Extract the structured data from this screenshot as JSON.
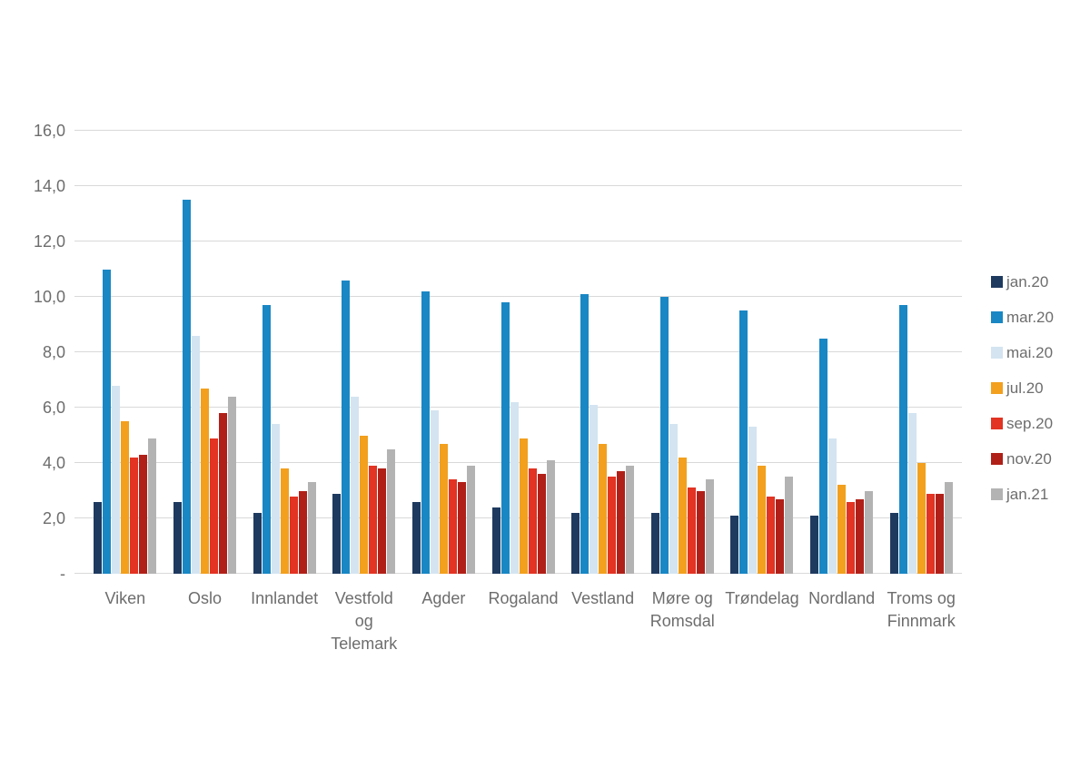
{
  "chart_data": {
    "type": "bar",
    "title": "",
    "xlabel": "",
    "ylabel": "",
    "categories": [
      "Viken",
      "Oslo",
      "Innlandet",
      "Vestfold\nog\nTelemark",
      "Agder",
      "Rogaland",
      "Vestland",
      "Møre og\nRomsdal",
      "Trøndelag",
      "Nordland",
      "Troms og\nFinnmark"
    ],
    "series": [
      {
        "name": "jan.20",
        "color": "#1f3a5f",
        "values": [
          2.6,
          2.6,
          2.2,
          2.9,
          2.6,
          2.4,
          2.2,
          2.2,
          2.1,
          2.1,
          2.2
        ]
      },
      {
        "name": "mar.20",
        "color": "#1987c4",
        "values": [
          11.0,
          13.5,
          9.7,
          10.6,
          10.2,
          9.8,
          10.1,
          10.0,
          9.5,
          8.5,
          9.7
        ]
      },
      {
        "name": "mai.20",
        "color": "#d4e4f1",
        "values": [
          6.8,
          8.6,
          5.4,
          6.4,
          5.9,
          6.2,
          6.1,
          5.4,
          5.3,
          4.9,
          5.8
        ]
      },
      {
        "name": "jul.20",
        "color": "#f2a01e",
        "values": [
          5.5,
          6.7,
          3.8,
          5.0,
          4.7,
          4.9,
          4.7,
          4.2,
          3.9,
          3.2,
          4.0
        ]
      },
      {
        "name": "sep.20",
        "color": "#e23323",
        "values": [
          4.2,
          4.9,
          2.8,
          3.9,
          3.4,
          3.8,
          3.5,
          3.1,
          2.8,
          2.6,
          2.9
        ]
      },
      {
        "name": "nov.20",
        "color": "#b02018",
        "values": [
          4.3,
          5.8,
          3.0,
          3.8,
          3.3,
          3.6,
          3.7,
          3.0,
          2.7,
          2.7,
          2.9
        ]
      },
      {
        "name": "jan.21",
        "color": "#b3b3b3",
        "values": [
          4.9,
          6.4,
          3.3,
          4.5,
          3.9,
          4.1,
          3.9,
          3.4,
          3.5,
          3.0,
          3.3
        ]
      }
    ],
    "y_axis": {
      "min": 0,
      "max": 16,
      "tick_step": 2,
      "tick_labels": [
        "-",
        "2,0",
        "4,0",
        "6,0",
        "8,0",
        "10,0",
        "12,0",
        "14,0",
        "16,0"
      ]
    },
    "grid": "horizontal",
    "gridline_color": "#d9d9d9",
    "legend_position": "right"
  }
}
